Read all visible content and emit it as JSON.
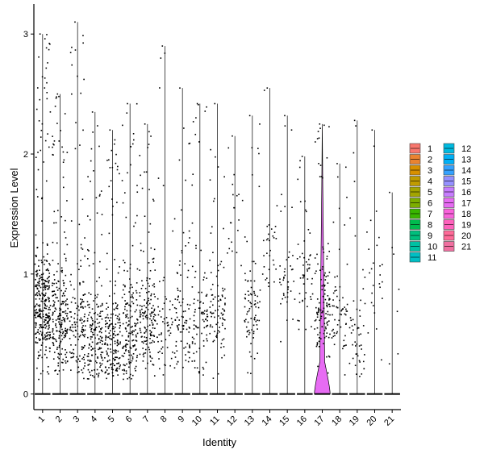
{
  "chart_data": {
    "type": "violin",
    "xlabel": "Identity",
    "ylabel": "Expression Level",
    "ylim": [
      -0.13,
      3.25
    ],
    "yticks": [
      0,
      1,
      2,
      3
    ],
    "categories": [
      "1",
      "2",
      "3",
      "4",
      "5",
      "6",
      "7",
      "8",
      "9",
      "10",
      "11",
      "12",
      "13",
      "14",
      "15",
      "16",
      "17",
      "18",
      "19",
      "20",
      "21"
    ],
    "colors": [
      "#F8766D",
      "#EA8331",
      "#D89000",
      "#C09B00",
      "#A3A500",
      "#7CAE00",
      "#39B600",
      "#00BB4E",
      "#00BF7D",
      "#00C1A3",
      "#00BFC4",
      "#00BAE0",
      "#00B0F6",
      "#35A2FF",
      "#9590FF",
      "#C77CFF",
      "#E76BF3",
      "#FA62DB",
      "#FF62BC",
      "#FF6A98",
      "#F06FA0"
    ],
    "max_expression": [
      3.0,
      2.5,
      3.1,
      2.35,
      2.2,
      2.42,
      2.25,
      2.9,
      2.55,
      2.42,
      2.42,
      2.15,
      2.32,
      2.55,
      2.32,
      1.98,
      2.25,
      1.92,
      2.28,
      2.2,
      1.68
    ],
    "point_density": [
      320,
      220,
      150,
      170,
      180,
      170,
      160,
      60,
      90,
      90,
      90,
      20,
      80,
      30,
      40,
      50,
      120,
      60,
      50,
      25,
      6
    ],
    "point_median": [
      0.7,
      0.6,
      0.55,
      0.45,
      0.4,
      0.5,
      0.6,
      0.55,
      0.6,
      0.6,
      0.7,
      1.5,
      0.7,
      1.2,
      0.9,
      0.9,
      0.7,
      0.7,
      0.5,
      0.9,
      0.5
    ],
    "violin_17_peak_width": 0.35,
    "legend": {
      "position": "right",
      "columns": [
        [
          "1",
          "2",
          "3",
          "4",
          "5",
          "6",
          "7",
          "8",
          "9",
          "10",
          "11"
        ],
        [
          "12",
          "13",
          "14",
          "15",
          "16",
          "17",
          "18",
          "19",
          "20",
          "21"
        ]
      ]
    },
    "grid": false
  }
}
